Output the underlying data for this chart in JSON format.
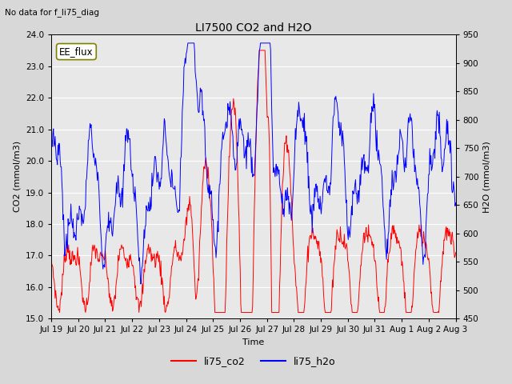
{
  "title": "LI7500 CO2 and H2O",
  "subtitle": "No data for f_li75_diag",
  "xlabel": "Time",
  "ylabel_left": "CO2 (mmol/m3)",
  "ylabel_right": "H2O (mmol/m3)",
  "ylim_left": [
    15.0,
    24.0
  ],
  "ylim_right": [
    450,
    950
  ],
  "legend_labels": [
    "li75_co2",
    "li75_h2o"
  ],
  "co2_color": "red",
  "h2o_color": "blue",
  "annotation_text": "EE_flux",
  "x_tick_labels": [
    "Jul 19",
    "Jul 20",
    "Jul 21",
    "Jul 22",
    "Jul 23",
    "Jul 24",
    "Jul 25",
    "Jul 26",
    "Jul 27",
    "Jul 28",
    "Jul 29",
    "Jul 30",
    "Jul 31",
    "Aug 1",
    "Aug 2",
    "Aug 3"
  ],
  "background_color": "#d8d8d8",
  "plot_bg_color": "#e8e8e8",
  "grid_color": "#ffffff",
  "figsize": [
    6.4,
    4.8
  ],
  "dpi": 100
}
